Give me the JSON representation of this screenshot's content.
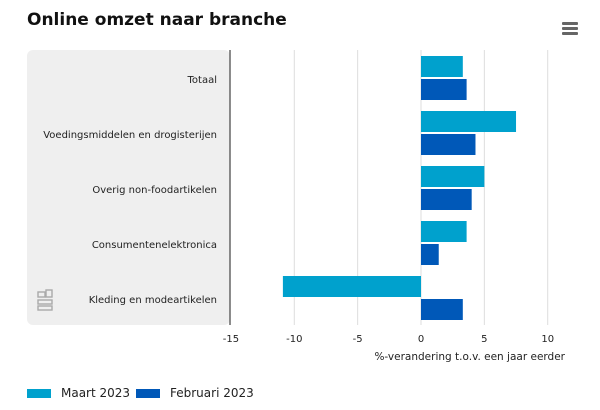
{
  "header": {
    "title": "Online omzet naar branche",
    "menu_icon": "hamburger-menu-icon"
  },
  "chart_data": {
    "type": "bar",
    "orientation": "horizontal",
    "title": "Online omzet naar branche",
    "categories": [
      "Totaal",
      "Voedingsmiddelen en drogisterijen",
      "Overig non-foodartikelen",
      "Consumentenelektronica",
      "Kleding en modeartikelen"
    ],
    "series": [
      {
        "name": "Maart 2023",
        "color": "#00a1cd",
        "values": [
          3.3,
          7.5,
          5.0,
          3.6,
          -10.9
        ]
      },
      {
        "name": "Februari 2023",
        "color": "#0058b8",
        "values": [
          3.6,
          4.3,
          4.0,
          1.4,
          3.3
        ]
      }
    ],
    "xlabel": "%-verandering t.o.v. een jaar eerder",
    "ylabel": "",
    "xlim": [
      -15,
      10.7
    ],
    "xticks": [
      "-15",
      "-10",
      "-5",
      "0",
      "5",
      "10"
    ],
    "grid": true,
    "legend": "bottom-left"
  }
}
